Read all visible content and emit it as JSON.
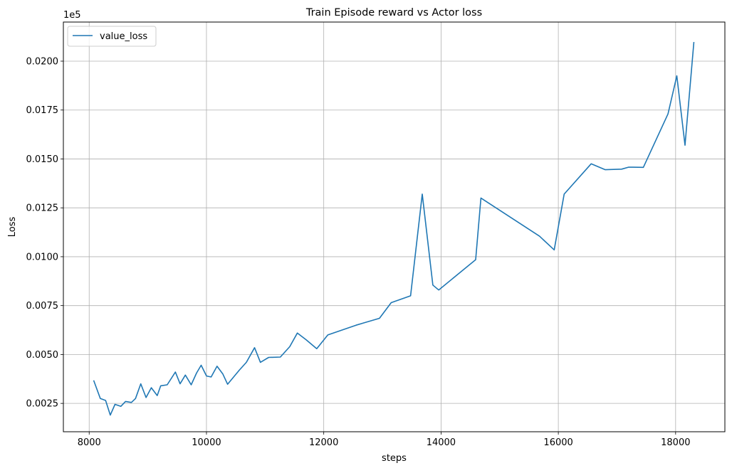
{
  "chart_data": {
    "type": "line",
    "title": "Train Episode reward vs Actor loss",
    "xlabel": "steps",
    "ylabel": "Loss",
    "y_offset_text": "1e5",
    "xlim": [
      7560,
      18840
    ],
    "ylim": [
      0.00105,
      0.022
    ],
    "x_ticks": [
      8000,
      10000,
      12000,
      14000,
      16000,
      18000
    ],
    "x_tick_labels": [
      "8000",
      "10000",
      "12000",
      "14000",
      "16000",
      "18000"
    ],
    "y_ticks": [
      0.0025,
      0.005,
      0.0075,
      0.01,
      0.0125,
      0.015,
      0.0175,
      0.02
    ],
    "y_tick_labels": [
      "0.0025",
      "0.0050",
      "0.0075",
      "0.0100",
      "0.0125",
      "0.0150",
      "0.0175",
      "0.0200"
    ],
    "grid": true,
    "legend_position": "top-left",
    "series": [
      {
        "name": "value_loss",
        "color": "#1f77b4",
        "x": [
          8080,
          8190,
          8280,
          8360,
          8440,
          8540,
          8620,
          8720,
          8790,
          8880,
          8970,
          9060,
          9160,
          9220,
          9330,
          9470,
          9550,
          9640,
          9740,
          9830,
          9910,
          10000,
          10080,
          10180,
          10280,
          10360,
          10560,
          10680,
          10820,
          10920,
          11060,
          11260,
          11420,
          11550,
          11700,
          11880,
          12070,
          12550,
          12950,
          13150,
          13480,
          13680,
          13860,
          13960,
          14590,
          14680,
          15680,
          15930,
          16100,
          16560,
          16800,
          17080,
          17200,
          17450,
          17870,
          18020,
          18160,
          18310
        ],
        "y": [
          0.00365,
          0.00275,
          0.00265,
          0.0019,
          0.00245,
          0.00235,
          0.0026,
          0.00255,
          0.00275,
          0.0035,
          0.0028,
          0.0033,
          0.0029,
          0.0034,
          0.00345,
          0.0041,
          0.0035,
          0.00395,
          0.00345,
          0.00405,
          0.00445,
          0.0039,
          0.00385,
          0.0044,
          0.004,
          0.00348,
          0.0042,
          0.0046,
          0.00535,
          0.0046,
          0.00485,
          0.00487,
          0.0054,
          0.0061,
          0.00575,
          0.0053,
          0.006,
          0.0065,
          0.00685,
          0.00765,
          0.008,
          0.0132,
          0.00855,
          0.0083,
          0.00985,
          0.013,
          0.01105,
          0.01035,
          0.0132,
          0.01475,
          0.01445,
          0.01448,
          0.01458,
          0.01457,
          0.0173,
          0.01925,
          0.0157,
          0.02095
        ]
      }
    ]
  }
}
